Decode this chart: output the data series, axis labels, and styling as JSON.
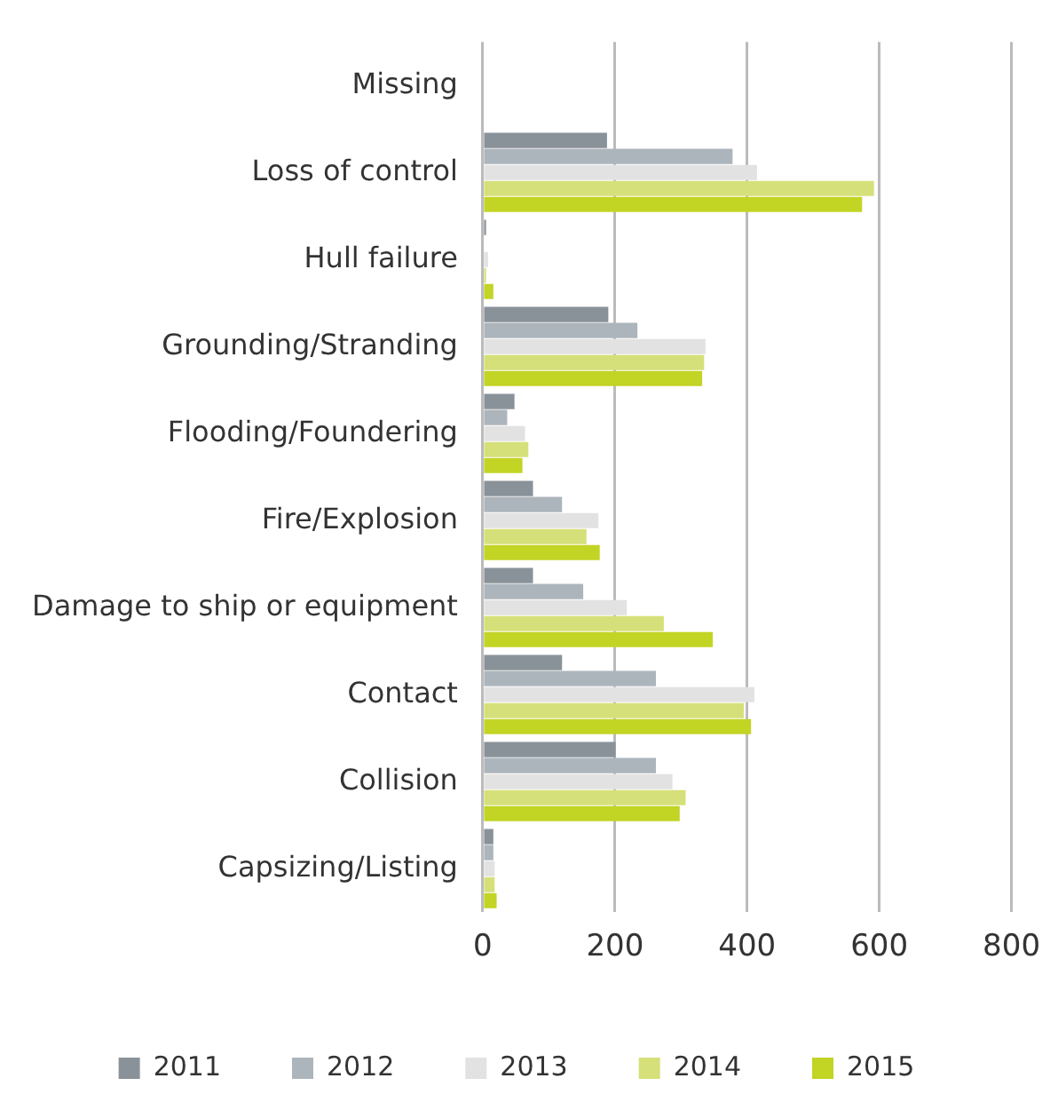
{
  "chart_data": {
    "type": "bar",
    "orientation": "horizontal",
    "categories": [
      "Missing",
      "Loss of control",
      "Hull failure",
      "Grounding/Stranding",
      "Flooding/Foundering",
      "Fire/Explosion",
      "Damage to ship or equipment",
      "Contact",
      "Collision",
      "Capsizing/Listing"
    ],
    "series": [
      {
        "name": "2011",
        "color": "#8a9299",
        "values": [
          0,
          188,
          5,
          190,
          48,
          76,
          76,
          120,
          201,
          16
        ]
      },
      {
        "name": "2012",
        "color": "#adb5bc",
        "values": [
          0,
          378,
          2,
          234,
          37,
          120,
          152,
          262,
          262,
          16
        ]
      },
      {
        "name": "2013",
        "color": "#e2e2e2",
        "values": [
          0,
          415,
          8,
          337,
          64,
          175,
          218,
          411,
          287,
          18
        ]
      },
      {
        "name": "2014",
        "color": "#d6e07a",
        "values": [
          0,
          592,
          5,
          335,
          69,
          157,
          274,
          395,
          307,
          18
        ]
      },
      {
        "name": "2015",
        "color": "#c2d424",
        "values": [
          0,
          574,
          16,
          332,
          60,
          177,
          348,
          406,
          298,
          21
        ]
      }
    ],
    "xlim": [
      0,
      800
    ],
    "xticks": [
      0,
      200,
      400,
      600,
      800
    ],
    "grid": "x",
    "legend": "bottom"
  }
}
